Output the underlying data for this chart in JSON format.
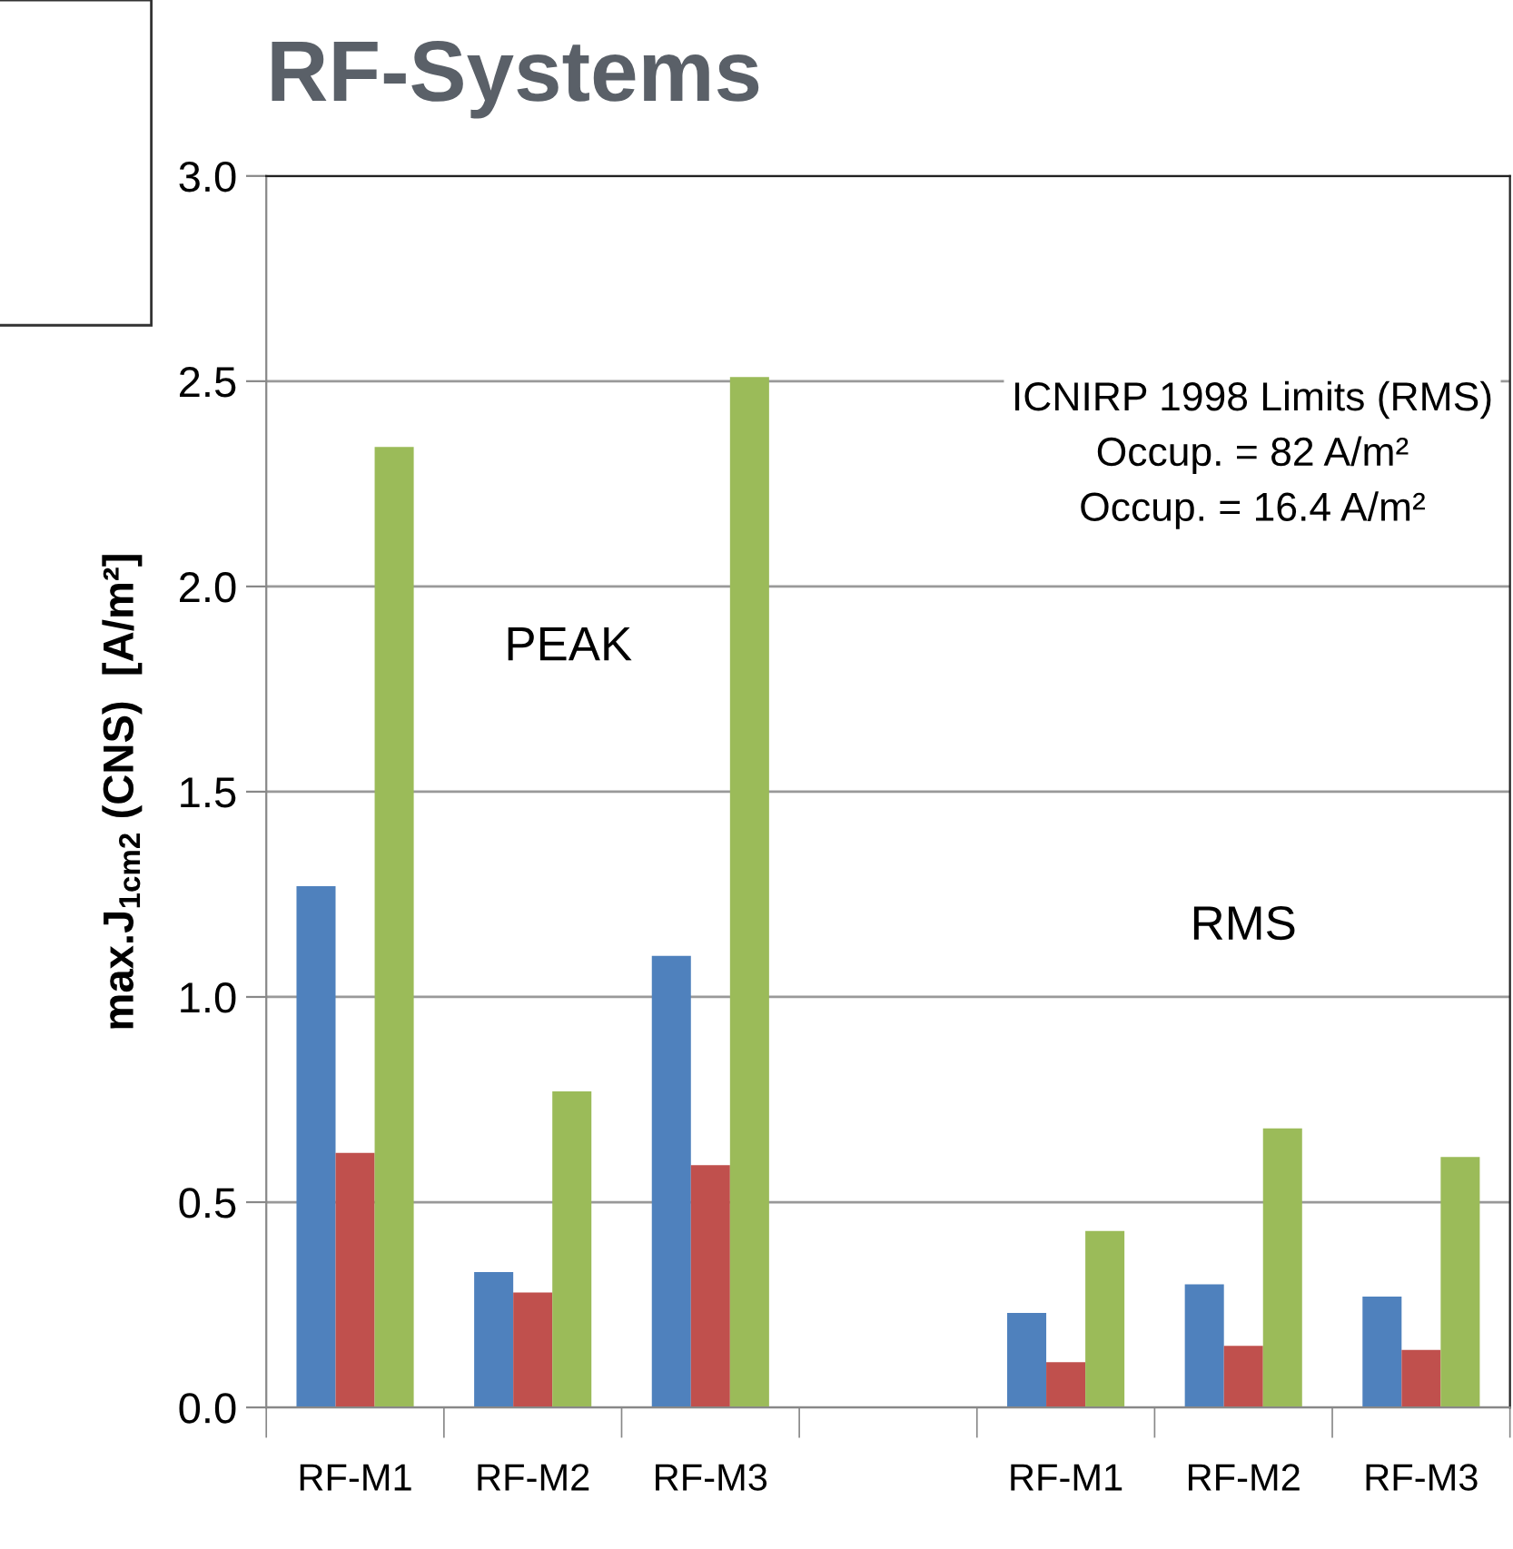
{
  "chart_data": {
    "type": "bar",
    "title": "RF-Systems",
    "ylabel": "max.J$_{1cm2}$ (CNS)  [A/m²]",
    "categories": [
      "RF-M1",
      "RF-M2",
      "RF-M3",
      null,
      "RF-M1",
      "RF-M2",
      "RF-M3"
    ],
    "series": [
      {
        "color": "#4f81bd",
        "values": [
          1.27,
          0.33,
          1.1,
          null,
          0.23,
          0.3,
          0.27
        ]
      },
      {
        "color": "#c0504d",
        "values": [
          0.62,
          0.28,
          0.59,
          null,
          0.11,
          0.15,
          0.14
        ]
      },
      {
        "color": "#9bbb59",
        "values": [
          2.34,
          0.77,
          2.51,
          null,
          0.43,
          0.68,
          0.61
        ]
      }
    ],
    "ylim": [
      0,
      3.0
    ],
    "yticks": [
      {
        "value": 0,
        "label": "0.0"
      },
      0.5,
      {
        "value": 1,
        "label": "1.0"
      },
      1.5,
      {
        "value": 2,
        "label": "2.0"
      },
      2.5,
      {
        "value": 3,
        "label": "3.0"
      }
    ],
    "grid": "y",
    "legend": false,
    "annotations": [
      "PEAK",
      "RMS",
      "ICNIRP 1998 Limits (RMS)\nOccup. = 82 A/m²\nOccup. = 16.4 A/m²"
    ]
  }
}
